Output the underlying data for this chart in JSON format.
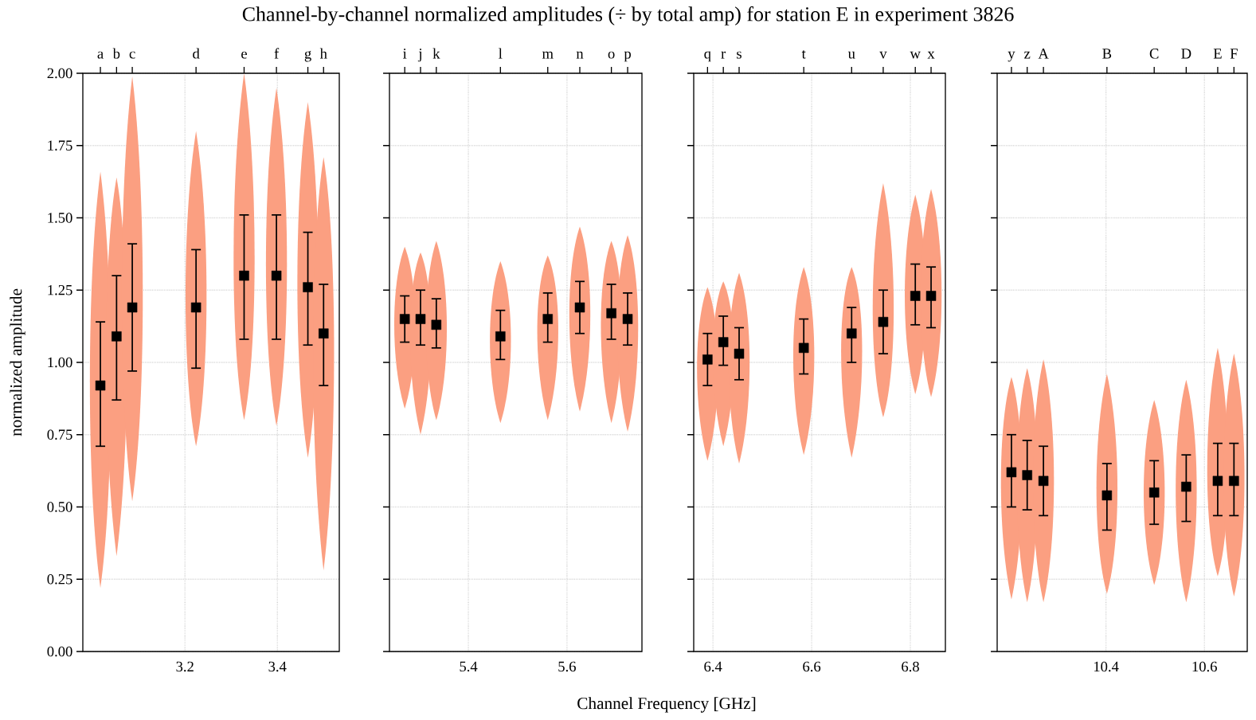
{
  "chart_data": [
    {
      "type": "scatter",
      "title": "Channel-by-channel normalized amplitudes (÷ by total amp) for station E in experiment 3826",
      "ylabel": "normalized amplitude",
      "marker": "square",
      "grid": true,
      "series": [
        {
          "color": "#000000",
          "x": [
            3.017,
            3.052,
            3.086,
            3.224,
            3.328,
            3.398,
            3.466,
            3.5
          ],
          "values": [
            0.92,
            1.09,
            1.19,
            1.19,
            1.3,
            1.3,
            1.26,
            1.1
          ],
          "errors": [
            [
              0.71,
              1.14
            ],
            [
              0.87,
              1.3
            ],
            [
              0.97,
              1.41
            ],
            [
              0.98,
              1.39
            ],
            [
              1.08,
              1.51
            ],
            [
              1.08,
              1.51
            ],
            [
              1.06,
              1.45
            ],
            [
              0.92,
              1.27
            ]
          ],
          "lower": [
            0.22,
            0.33,
            0.52,
            0.71,
            0.8,
            0.78,
            0.67,
            0.28
          ],
          "upper": [
            1.66,
            1.64,
            1.99,
            1.8,
            2.0,
            1.95,
            1.9,
            1.71
          ]
        }
      ],
      "annotations": [
        "a",
        "b",
        "c",
        "d",
        "e",
        "f",
        "g",
        "h"
      ],
      "colors": [
        "#fb9f81"
      ],
      "xlim": [
        2.979,
        3.534
      ],
      "xticks": [
        3.2,
        3.4
      ],
      "ylim": [
        0,
        2
      ],
      "yticks": [
        {
          "value": 0,
          "label": "0.00"
        },
        {
          "value": 0.25,
          "label": "0.25"
        },
        {
          "value": 0.5,
          "label": "0.50"
        },
        {
          "value": 0.75,
          "label": "0.75"
        },
        {
          "value": 1,
          "label": "1.00"
        },
        {
          "value": 1.25,
          "label": "1.25"
        },
        {
          "value": 1.5,
          "label": "1.50"
        },
        {
          "value": 1.75,
          "label": "1.75"
        },
        {
          "value": 2,
          "label": "2.00"
        }
      ]
    },
    {
      "type": "scatter",
      "xlabel": "Channel Frequency [GHz]",
      "marker": "square",
      "grid": true,
      "tick_labels": "x",
      "series": [
        {
          "color": "#000000",
          "x": [
            5.271,
            5.303,
            5.335,
            5.465,
            5.561,
            5.626,
            5.69,
            5.723
          ],
          "values": [
            1.15,
            1.15,
            1.13,
            1.09,
            1.15,
            1.19,
            1.17,
            1.15
          ],
          "errors": [
            [
              1.07,
              1.23
            ],
            [
              1.06,
              1.25
            ],
            [
              1.05,
              1.22
            ],
            [
              1.01,
              1.18
            ],
            [
              1.07,
              1.24
            ],
            [
              1.1,
              1.28
            ],
            [
              1.08,
              1.27
            ],
            [
              1.06,
              1.24
            ]
          ],
          "lower": [
            0.84,
            0.75,
            0.8,
            0.79,
            0.8,
            0.83,
            0.79,
            0.76
          ],
          "upper": [
            1.4,
            1.38,
            1.42,
            1.35,
            1.37,
            1.47,
            1.42,
            1.44
          ]
        }
      ],
      "annotations": [
        "i",
        "j",
        "k",
        "l",
        "m",
        "n",
        "o",
        "p"
      ],
      "colors": [
        "#fb9f81"
      ],
      "xlim": [
        5.24,
        5.752
      ],
      "xticks": [
        5.4,
        5.6
      ],
      "ylim": [
        0,
        2
      ],
      "yticks": [
        0,
        0.25,
        0.5,
        0.75,
        1,
        1.25,
        1.5,
        1.75,
        2
      ]
    },
    {
      "type": "scatter",
      "marker": "square",
      "grid": true,
      "tick_labels": "x",
      "series": [
        {
          "color": "#000000",
          "x": [
            6.389,
            6.421,
            6.453,
            6.584,
            6.681,
            6.745,
            6.81,
            6.842
          ],
          "values": [
            1.01,
            1.07,
            1.03,
            1.05,
            1.1,
            1.14,
            1.23,
            1.23
          ],
          "errors": [
            [
              0.92,
              1.1
            ],
            [
              0.99,
              1.16
            ],
            [
              0.94,
              1.12
            ],
            [
              0.96,
              1.15
            ],
            [
              1.0,
              1.19
            ],
            [
              1.03,
              1.25
            ],
            [
              1.13,
              1.34
            ],
            [
              1.12,
              1.33
            ]
          ],
          "lower": [
            0.66,
            0.71,
            0.65,
            0.68,
            0.67,
            0.81,
            0.89,
            0.88
          ],
          "upper": [
            1.26,
            1.28,
            1.31,
            1.33,
            1.33,
            1.62,
            1.58,
            1.6
          ]
        }
      ],
      "annotations": [
        "q",
        "r",
        "s",
        "t",
        "u",
        "v",
        "w",
        "x"
      ],
      "colors": [
        "#fb9f81"
      ],
      "xlim": [
        6.361,
        6.871
      ],
      "xticks": [
        6.4,
        6.6,
        6.8
      ],
      "ylim": [
        0,
        2
      ],
      "yticks": [
        0,
        0.25,
        0.5,
        0.75,
        1,
        1.25,
        1.5,
        1.75,
        2
      ]
    },
    {
      "type": "scatter",
      "marker": "square",
      "grid": true,
      "tick_labels": "x",
      "series": [
        {
          "color": "#000000",
          "x": [
            10.208,
            10.24,
            10.273,
            10.402,
            10.498,
            10.563,
            10.627,
            10.66
          ],
          "values": [
            0.62,
            0.61,
            0.59,
            0.54,
            0.55,
            0.57,
            0.59,
            0.59
          ],
          "errors": [
            [
              0.5,
              0.75
            ],
            [
              0.49,
              0.73
            ],
            [
              0.47,
              0.71
            ],
            [
              0.42,
              0.65
            ],
            [
              0.44,
              0.66
            ],
            [
              0.45,
              0.68
            ],
            [
              0.47,
              0.72
            ],
            [
              0.47,
              0.72
            ]
          ],
          "lower": [
            0.18,
            0.17,
            0.17,
            0.2,
            0.23,
            0.17,
            0.26,
            0.19
          ],
          "upper": [
            0.95,
            0.98,
            1.01,
            0.96,
            0.87,
            0.94,
            1.05,
            1.03
          ]
        }
      ],
      "annotations": [
        "y",
        "z",
        "A",
        "B",
        "C",
        "D",
        "E",
        "F"
      ],
      "colors": [
        "#fb9f81"
      ],
      "xlim": [
        10.179,
        10.687
      ],
      "xticks": [
        10.4,
        10.6
      ],
      "ylim": [
        0,
        2
      ],
      "yticks": [
        0,
        0.25,
        0.5,
        0.75,
        1,
        1.25,
        1.5,
        1.75,
        2
      ]
    }
  ]
}
